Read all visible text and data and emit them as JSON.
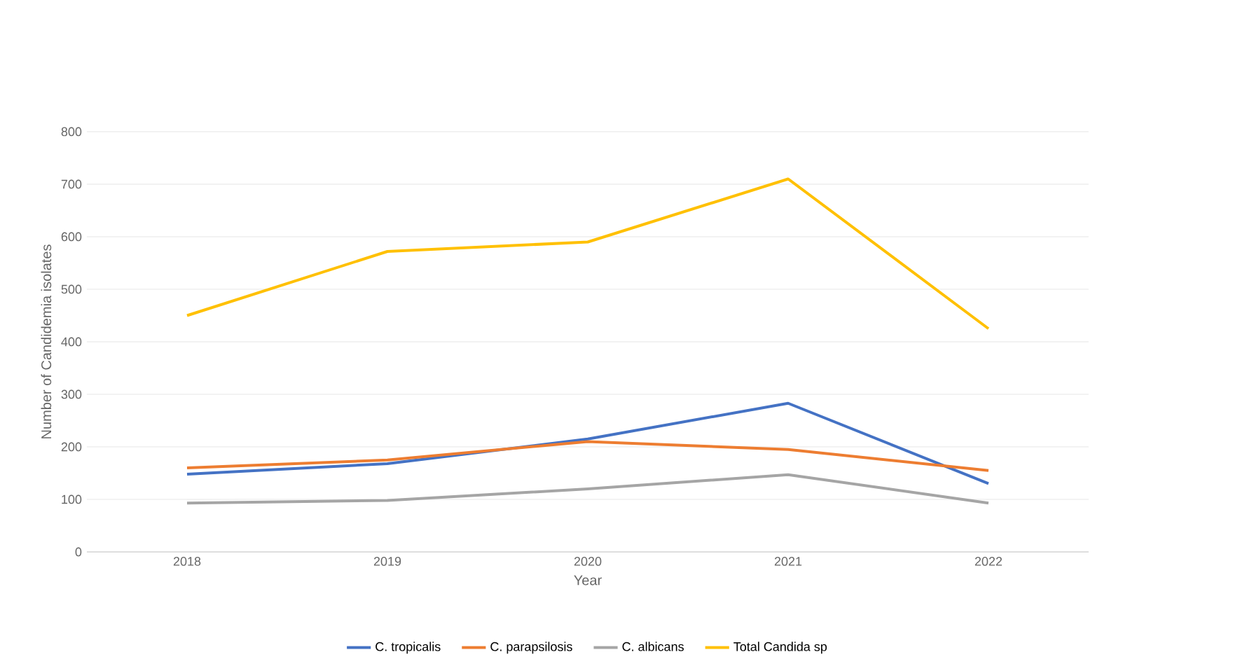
{
  "chart_data": {
    "type": "line",
    "xlabel": "Year",
    "ylabel": "Number of Candidemia isolates",
    "categories": [
      "2018",
      "2019",
      "2020",
      "2021",
      "2022"
    ],
    "series": [
      {
        "name": "C. tropicalis",
        "color": "#4472c4",
        "values": [
          148,
          168,
          215,
          283,
          130
        ]
      },
      {
        "name": "C. parapsilosis",
        "color": "#ed7d31",
        "values": [
          160,
          175,
          210,
          195,
          155
        ]
      },
      {
        "name": "C. albicans",
        "color": "#a5a5a5",
        "values": [
          93,
          98,
          120,
          147,
          93
        ]
      },
      {
        "name": "Total Candida sp",
        "color": "#ffc000",
        "values": [
          450,
          572,
          590,
          710,
          425
        ]
      }
    ],
    "ylim": [
      0,
      800
    ],
    "yticks": [
      0,
      100,
      200,
      300,
      400,
      500,
      600,
      700,
      800
    ],
    "grid": "y",
    "legend": "bottom",
    "marker": "none",
    "line_style": "solid"
  }
}
